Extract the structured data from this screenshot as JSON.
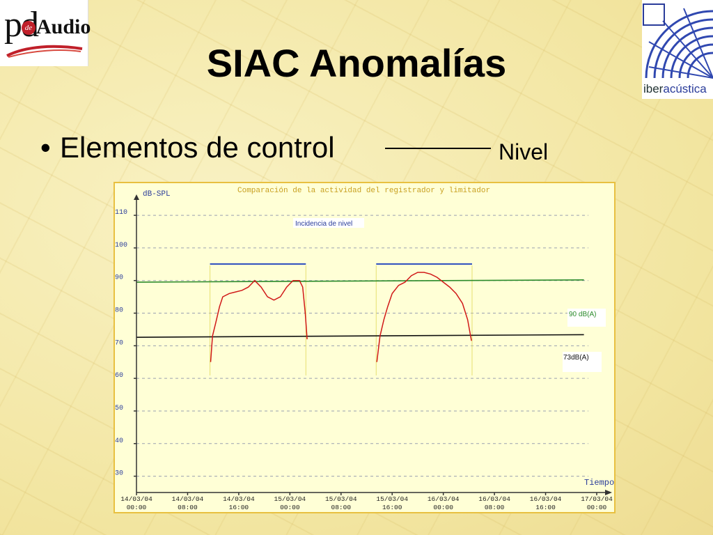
{
  "slide": {
    "title": "SIAC Anomalías",
    "bullet": "Elementos de control",
    "bullet_marker": "•",
    "callout_label": "Nivel"
  },
  "logos": {
    "left_pd": "pd",
    "left_de": "de",
    "left_audio": "Audio",
    "right_prefix": "iber",
    "right_rest": "acústica"
  },
  "colors": {
    "background": "#f5ecae",
    "chart_background": "#ffffd6",
    "chart_border": "#e8c040",
    "title_color": "#c8a020",
    "level_line": "#d01818",
    "threshold_90": "#2a8a2a",
    "threshold_73": "#111111",
    "incident_bar": "#3050c0"
  },
  "chart_data": {
    "type": "line",
    "title": "Comparación de la actividad del registrador y limitador",
    "ylabel": "dB-SPL",
    "xlabel": "Tiempo",
    "y_ticks": [
      "110",
      "100",
      "90",
      "80",
      "70",
      "60",
      "50",
      "40",
      "30"
    ],
    "y_tick_values": [
      110,
      100,
      90,
      80,
      70,
      60,
      50,
      40,
      30
    ],
    "ylim": [
      25,
      116
    ],
    "x_ticks": [
      {
        "date": "14/03/04",
        "time": "00:00"
      },
      {
        "date": "14/03/04",
        "time": "08:00"
      },
      {
        "date": "14/03/04",
        "time": "16:00"
      },
      {
        "date": "15/03/04",
        "time": "00:00"
      },
      {
        "date": "15/03/04",
        "time": "08:00"
      },
      {
        "date": "15/03/04",
        "time": "16:00"
      },
      {
        "date": "16/03/04",
        "time": "00:00"
      },
      {
        "date": "16/03/04",
        "time": "08:00"
      },
      {
        "date": "16/03/04",
        "time": "16:00"
      },
      {
        "date": "17/03/04",
        "time": "00:00"
      }
    ],
    "xlim": [
      0,
      72
    ],
    "grid": true,
    "annotations": [
      {
        "text": "Incidencia de nivel"
      },
      {
        "text": "90 dB(A)"
      },
      {
        "text": "73dB(A)"
      }
    ],
    "thresholds": [
      {
        "label": "90 dB(A)",
        "x": [
          0,
          70
        ],
        "y": [
          89.5,
          90.2
        ]
      },
      {
        "label": "73dB(A)",
        "x": [
          0,
          70
        ],
        "y": [
          72.6,
          73.4
        ]
      }
    ],
    "incident_periods": [
      [
        11.5,
        26.5
      ],
      [
        37.5,
        52.5
      ]
    ],
    "series": [
      {
        "values": [
          [
            11.6,
            65
          ],
          [
            11.9,
            73
          ],
          [
            12.4,
            77
          ],
          [
            13.0,
            82
          ],
          [
            13.5,
            85
          ],
          [
            14.5,
            86
          ],
          [
            15.5,
            86.5
          ],
          [
            16.5,
            87
          ],
          [
            17.5,
            88
          ],
          [
            18.5,
            90
          ],
          [
            19.5,
            88
          ],
          [
            20.5,
            85
          ],
          [
            21.5,
            84
          ],
          [
            22.5,
            85
          ],
          [
            23.5,
            88
          ],
          [
            24.5,
            90
          ],
          [
            25.5,
            90
          ],
          [
            26.0,
            88
          ],
          [
            26.4,
            80
          ],
          [
            26.7,
            72
          ]
        ]
      },
      {
        "values": [
          [
            37.6,
            65
          ],
          [
            38.1,
            73
          ],
          [
            38.7,
            78
          ],
          [
            39.3,
            82
          ],
          [
            40.0,
            86
          ],
          [
            41.0,
            88.5
          ],
          [
            42.0,
            89.5
          ],
          [
            43.0,
            91.5
          ],
          [
            44.0,
            92.5
          ],
          [
            45.0,
            92.5
          ],
          [
            46.0,
            92
          ],
          [
            47.0,
            91
          ],
          [
            48.0,
            89.5
          ],
          [
            49.0,
            88
          ],
          [
            50.0,
            86
          ],
          [
            51.0,
            83
          ],
          [
            51.8,
            78
          ],
          [
            52.4,
            71.5
          ]
        ]
      }
    ]
  }
}
